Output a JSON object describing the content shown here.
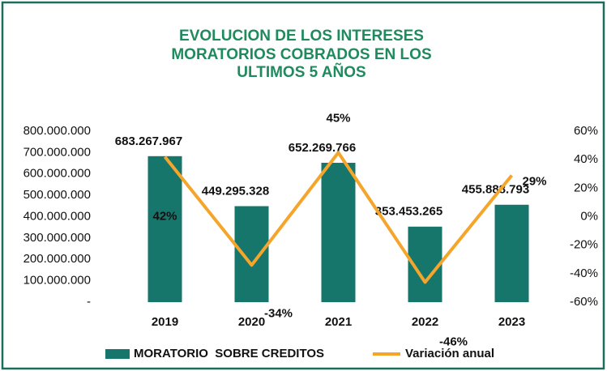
{
  "chart_data": {
    "type": "bar",
    "title": [
      "EVOLUCION DE LOS INTERESES",
      "MORATORIOS COBRADOS EN LOS",
      "ULTIMOS 5 AÑOS"
    ],
    "categories": [
      "2019",
      "2020",
      "2021",
      "2022",
      "2023"
    ],
    "series": [
      {
        "name": "MORATORIO  SOBRE CREDITOS",
        "type": "bar",
        "color": "#17766b",
        "values": [
          683267967,
          449295328,
          652269766,
          353453265,
          455888793
        ],
        "value_labels": [
          "683.267.967",
          "449.295.328",
          "652.269.766",
          "353.453.265",
          "455.888.793"
        ]
      },
      {
        "name": "Variación anual",
        "type": "line",
        "axis": "y2",
        "color": "#f5a52a",
        "values": [
          42,
          -34,
          45,
          -46,
          29
        ],
        "value_labels": [
          "42%",
          "-34%",
          "45%",
          "-46%",
          "29%"
        ]
      }
    ],
    "ylim": [
      0,
      800000000
    ],
    "yticks": [
      {
        "value": 0,
        "label": "-"
      },
      {
        "value": 100000000,
        "label": "100.000.000"
      },
      {
        "value": 200000000,
        "label": "200.000.000"
      },
      {
        "value": 300000000,
        "label": "300.000.000"
      },
      {
        "value": 400000000,
        "label": "400.000.000"
      },
      {
        "value": 500000000,
        "label": "500.000.000"
      },
      {
        "value": 600000000,
        "label": "600.000.000"
      },
      {
        "value": 700000000,
        "label": "700.000.000"
      },
      {
        "value": 800000000,
        "label": "800.000.000"
      }
    ],
    "y2lim": [
      -60,
      60
    ],
    "y2ticks": [
      {
        "value": -60,
        "label": "-60%"
      },
      {
        "value": -40,
        "label": "-40%"
      },
      {
        "value": -20,
        "label": "-20%"
      },
      {
        "value": 0,
        "label": "0%"
      },
      {
        "value": 20,
        "label": "20%"
      },
      {
        "value": 40,
        "label": "40%"
      },
      {
        "value": 60,
        "label": "60%"
      }
    ],
    "legend": "bottom"
  }
}
